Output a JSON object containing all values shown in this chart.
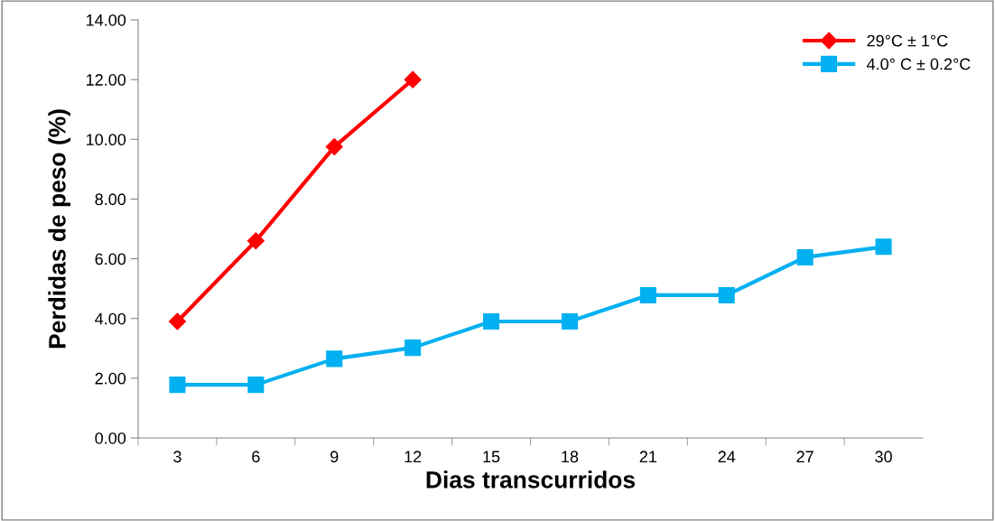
{
  "chart_data": {
    "type": "line",
    "xlabel": "Dias transcurridos",
    "ylabel": "Perdidas de peso (%)",
    "categories": [
      "3",
      "6",
      "9",
      "12",
      "15",
      "18",
      "21",
      "24",
      "27",
      "30"
    ],
    "series": [
      {
        "name": "29°C ± 1°C",
        "color": "#ff0000",
        "marker": "diamond",
        "values": [
          3.9,
          6.6,
          9.75,
          12.0,
          null,
          null,
          null,
          null,
          null,
          null
        ]
      },
      {
        "name": "4.0° C ± 0.2°C",
        "color": "#00b0f0",
        "marker": "square",
        "values": [
          1.78,
          1.78,
          2.65,
          3.02,
          3.9,
          3.9,
          4.78,
          4.78,
          6.05,
          6.4
        ]
      }
    ],
    "ylim": [
      0,
      14
    ],
    "yticks": [
      {
        "value": 0,
        "label": "0.00"
      },
      {
        "value": 2,
        "label": "2.00"
      },
      {
        "value": 4,
        "label": "4.00"
      },
      {
        "value": 6,
        "label": "6.00"
      },
      {
        "value": 8,
        "label": "8.00"
      },
      {
        "value": 10,
        "label": "10.00"
      },
      {
        "value": 12,
        "label": "12.00"
      },
      {
        "value": 14,
        "label": "14.00"
      }
    ],
    "grid": false,
    "legend": "top right",
    "line_style": "solid"
  }
}
